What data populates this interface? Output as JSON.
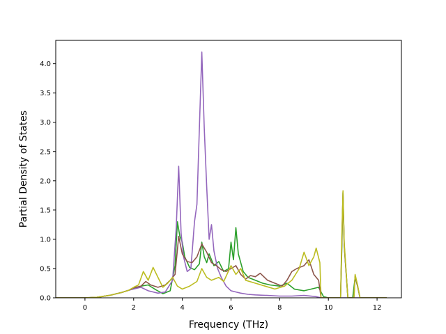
{
  "chart_data": {
    "type": "line",
    "title": "",
    "xlabel": "Frequency (THz)",
    "ylabel": "Partial Density of States",
    "xlim": [
      -1.2,
      13.0
    ],
    "ylim": [
      0.0,
      4.4
    ],
    "xticks": [
      0,
      2,
      4,
      6,
      8,
      10,
      12
    ],
    "yticks": [
      0.0,
      0.5,
      1.0,
      1.5,
      2.0,
      2.5,
      3.0,
      3.5,
      4.0
    ],
    "grid": false,
    "legend": "none",
    "series": [
      {
        "color": "#2ca02c",
        "points": [
          [
            -1.2,
            0
          ],
          [
            0,
            0
          ],
          [
            0.5,
            0.01
          ],
          [
            1.0,
            0.04
          ],
          [
            1.5,
            0.09
          ],
          [
            1.8,
            0.13
          ],
          [
            2.0,
            0.16
          ],
          [
            2.3,
            0.2
          ],
          [
            2.6,
            0.22
          ],
          [
            2.9,
            0.14
          ],
          [
            3.2,
            0.07
          ],
          [
            3.5,
            0.12
          ],
          [
            3.7,
            0.55
          ],
          [
            3.8,
            1.3
          ],
          [
            3.9,
            1.05
          ],
          [
            4.0,
            0.95
          ],
          [
            4.1,
            0.7
          ],
          [
            4.3,
            0.52
          ],
          [
            4.5,
            0.48
          ],
          [
            4.7,
            0.58
          ],
          [
            4.8,
            0.95
          ],
          [
            4.9,
            0.7
          ],
          [
            5.0,
            0.6
          ],
          [
            5.1,
            0.75
          ],
          [
            5.3,
            0.55
          ],
          [
            5.5,
            0.62
          ],
          [
            5.7,
            0.45
          ],
          [
            5.9,
            0.5
          ],
          [
            6.0,
            0.95
          ],
          [
            6.1,
            0.65
          ],
          [
            6.2,
            1.2
          ],
          [
            6.3,
            0.75
          ],
          [
            6.5,
            0.45
          ],
          [
            6.7,
            0.35
          ],
          [
            7.0,
            0.3
          ],
          [
            7.3,
            0.25
          ],
          [
            7.6,
            0.22
          ],
          [
            8.0,
            0.2
          ],
          [
            8.3,
            0.25
          ],
          [
            8.6,
            0.15
          ],
          [
            9.0,
            0.12
          ],
          [
            9.3,
            0.15
          ],
          [
            9.6,
            0.18
          ],
          [
            9.8,
            0.02
          ],
          [
            10.0,
            0
          ],
          [
            10.5,
            0
          ],
          [
            10.55,
            0.8
          ],
          [
            10.6,
            1.8
          ],
          [
            10.65,
            0.9
          ],
          [
            10.8,
            0
          ],
          [
            11.0,
            0
          ],
          [
            11.1,
            0.35
          ],
          [
            11.2,
            0.2
          ],
          [
            11.3,
            0
          ],
          [
            12.4,
            0
          ]
        ]
      },
      {
        "color": "#9467bd",
        "points": [
          [
            -1.2,
            0
          ],
          [
            0,
            0
          ],
          [
            0.5,
            0.01
          ],
          [
            1.0,
            0.04
          ],
          [
            1.5,
            0.09
          ],
          [
            1.8,
            0.13
          ],
          [
            2.0,
            0.15
          ],
          [
            2.3,
            0.18
          ],
          [
            2.6,
            0.12
          ],
          [
            3.0,
            0.08
          ],
          [
            3.3,
            0.1
          ],
          [
            3.6,
            0.3
          ],
          [
            3.75,
            1.2
          ],
          [
            3.85,
            2.25
          ],
          [
            3.95,
            1.1
          ],
          [
            4.05,
            0.7
          ],
          [
            4.2,
            0.45
          ],
          [
            4.35,
            0.5
          ],
          [
            4.5,
            1.3
          ],
          [
            4.6,
            1.6
          ],
          [
            4.7,
            2.9
          ],
          [
            4.8,
            4.2
          ],
          [
            4.9,
            2.9
          ],
          [
            5.0,
            1.9
          ],
          [
            5.1,
            1.0
          ],
          [
            5.2,
            1.25
          ],
          [
            5.3,
            0.8
          ],
          [
            5.45,
            0.5
          ],
          [
            5.6,
            0.35
          ],
          [
            5.8,
            0.2
          ],
          [
            6.0,
            0.12
          ],
          [
            6.2,
            0.1
          ],
          [
            6.4,
            0.08
          ],
          [
            6.7,
            0.06
          ],
          [
            7.0,
            0.05
          ],
          [
            7.5,
            0.04
          ],
          [
            8.0,
            0.03
          ],
          [
            8.5,
            0.03
          ],
          [
            9.0,
            0.04
          ],
          [
            9.5,
            0.02
          ],
          [
            9.7,
            0
          ],
          [
            12.4,
            0
          ]
        ]
      },
      {
        "color": "#8c564b",
        "points": [
          [
            -1.2,
            0
          ],
          [
            0,
            0
          ],
          [
            0.5,
            0.01
          ],
          [
            1.0,
            0.04
          ],
          [
            1.5,
            0.09
          ],
          [
            1.8,
            0.13
          ],
          [
            2.0,
            0.17
          ],
          [
            2.3,
            0.2
          ],
          [
            2.5,
            0.28
          ],
          [
            2.7,
            0.22
          ],
          [
            3.0,
            0.18
          ],
          [
            3.3,
            0.22
          ],
          [
            3.5,
            0.3
          ],
          [
            3.7,
            0.4
          ],
          [
            3.85,
            1.05
          ],
          [
            4.0,
            0.75
          ],
          [
            4.2,
            0.62
          ],
          [
            4.4,
            0.6
          ],
          [
            4.6,
            0.7
          ],
          [
            4.8,
            0.92
          ],
          [
            5.0,
            0.78
          ],
          [
            5.2,
            0.6
          ],
          [
            5.4,
            0.55
          ],
          [
            5.6,
            0.48
          ],
          [
            5.8,
            0.45
          ],
          [
            6.0,
            0.5
          ],
          [
            6.2,
            0.55
          ],
          [
            6.4,
            0.4
          ],
          [
            6.6,
            0.32
          ],
          [
            6.8,
            0.38
          ],
          [
            7.0,
            0.36
          ],
          [
            7.2,
            0.42
          ],
          [
            7.5,
            0.3
          ],
          [
            7.8,
            0.25
          ],
          [
            8.1,
            0.2
          ],
          [
            8.3,
            0.3
          ],
          [
            8.5,
            0.45
          ],
          [
            8.7,
            0.5
          ],
          [
            9.0,
            0.55
          ],
          [
            9.2,
            0.65
          ],
          [
            9.4,
            0.4
          ],
          [
            9.6,
            0.3
          ],
          [
            9.7,
            0
          ],
          [
            10.5,
            0
          ],
          [
            10.55,
            0.9
          ],
          [
            10.6,
            1.8
          ],
          [
            10.65,
            0.9
          ],
          [
            10.8,
            0
          ],
          [
            11.05,
            0
          ],
          [
            11.1,
            0.38
          ],
          [
            11.2,
            0.2
          ],
          [
            11.3,
            0
          ],
          [
            12.4,
            0
          ]
        ]
      },
      {
        "color": "#bcbd22",
        "points": [
          [
            -1.2,
            0
          ],
          [
            0,
            0
          ],
          [
            0.5,
            0.01
          ],
          [
            1.0,
            0.04
          ],
          [
            1.5,
            0.09
          ],
          [
            1.8,
            0.13
          ],
          [
            2.0,
            0.18
          ],
          [
            2.2,
            0.22
          ],
          [
            2.4,
            0.45
          ],
          [
            2.6,
            0.3
          ],
          [
            2.8,
            0.52
          ],
          [
            3.0,
            0.35
          ],
          [
            3.2,
            0.18
          ],
          [
            3.4,
            0.25
          ],
          [
            3.6,
            0.35
          ],
          [
            3.8,
            0.2
          ],
          [
            4.0,
            0.15
          ],
          [
            4.3,
            0.2
          ],
          [
            4.6,
            0.28
          ],
          [
            4.8,
            0.5
          ],
          [
            5.0,
            0.35
          ],
          [
            5.2,
            0.3
          ],
          [
            5.5,
            0.35
          ],
          [
            5.7,
            0.28
          ],
          [
            6.0,
            0.55
          ],
          [
            6.2,
            0.4
          ],
          [
            6.4,
            0.5
          ],
          [
            6.6,
            0.3
          ],
          [
            7.0,
            0.25
          ],
          [
            7.4,
            0.2
          ],
          [
            7.8,
            0.15
          ],
          [
            8.2,
            0.2
          ],
          [
            8.5,
            0.3
          ],
          [
            8.8,
            0.5
          ],
          [
            9.0,
            0.78
          ],
          [
            9.2,
            0.55
          ],
          [
            9.4,
            0.7
          ],
          [
            9.5,
            0.85
          ],
          [
            9.65,
            0.6
          ],
          [
            9.7,
            0
          ],
          [
            10.5,
            0
          ],
          [
            10.55,
            1.0
          ],
          [
            10.6,
            1.83
          ],
          [
            10.65,
            0.95
          ],
          [
            10.8,
            0
          ],
          [
            11.05,
            0
          ],
          [
            11.1,
            0.4
          ],
          [
            11.2,
            0.22
          ],
          [
            11.3,
            0
          ],
          [
            12.4,
            0
          ]
        ]
      }
    ]
  }
}
